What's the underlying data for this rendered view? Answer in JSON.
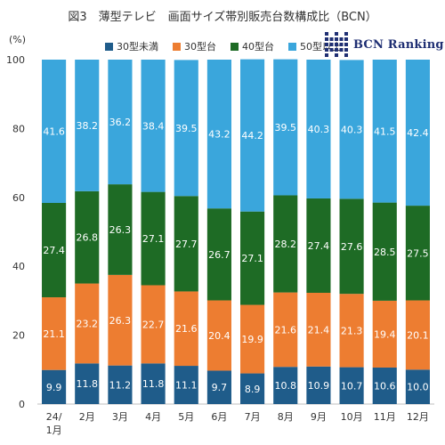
{
  "title": "図3　薄型テレビ　画面サイズ帯別販売台数構成比（BCN）",
  "y_unit_label": "(%)",
  "logo": {
    "text": "BCN Ranking"
  },
  "colors": {
    "under30": "#1f5c8a",
    "size30": "#ed7d31",
    "size40": "#1e6b25",
    "size50plus": "#3aa6dc"
  },
  "chart_data": {
    "type": "bar",
    "stacked": true,
    "categories": [
      "24/1月",
      "2月",
      "3月",
      "4月",
      "5月",
      "6月",
      "7月",
      "8月",
      "9月",
      "10月",
      "11月",
      "12月"
    ],
    "series": [
      {
        "name": "30型未満",
        "color": "#1f5c8a",
        "label_color": "#ffffff",
        "values": [
          9.9,
          11.8,
          11.2,
          11.8,
          11.1,
          9.7,
          8.9,
          10.8,
          10.9,
          10.7,
          10.6,
          10.0
        ]
      },
      {
        "name": "30型台",
        "color": "#ed7d31",
        "label_color": "#ffffff",
        "values": [
          21.1,
          23.2,
          26.3,
          22.7,
          21.6,
          20.4,
          19.9,
          21.6,
          21.4,
          21.3,
          19.4,
          20.1
        ]
      },
      {
        "name": "40型台",
        "color": "#1e6b25",
        "label_color": "#ffffff",
        "values": [
          27.4,
          26.8,
          26.3,
          27.1,
          27.7,
          26.7,
          27.1,
          28.2,
          27.4,
          27.6,
          28.5,
          27.5
        ]
      },
      {
        "name": "50型以上",
        "color": "#3aa6dc",
        "label_color": "#ffffff",
        "values": [
          41.6,
          38.2,
          36.2,
          38.4,
          39.5,
          43.2,
          44.2,
          39.5,
          40.3,
          40.3,
          41.5,
          42.4
        ]
      }
    ],
    "ylim": [
      0,
      100
    ],
    "yticks": [
      0,
      20,
      40,
      60,
      80,
      100
    ],
    "ylabel": "",
    "xlabel": "",
    "grid": false,
    "legend_position": "top"
  }
}
